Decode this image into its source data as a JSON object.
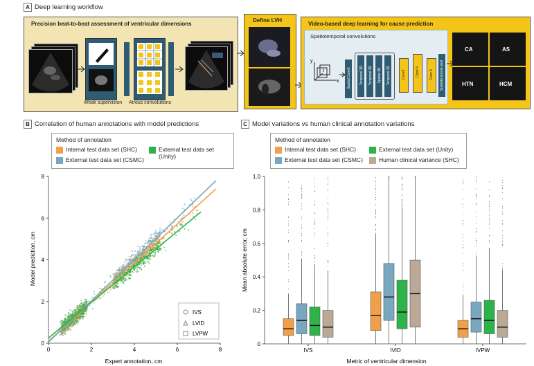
{
  "panel_a": {
    "letter": "A",
    "title": "Deep learning workflow",
    "section1_title": "Precision beat-to-beat assessment of ventricular dimensions",
    "weak_supervision": "Weak supervision",
    "atrous": "Atrous convolutions",
    "define_lvh": "Define LVH",
    "video_title": "Video-based deep learning for cause prediction",
    "spatiotemporal": "Spatiotemporal convolutions",
    "axes": {
      "x": "x",
      "y": "y",
      "t": "t"
    },
    "layers": [
      "Spatial Conv3",
      "Temporal 3D",
      "Temporal 3D",
      "Spatial 3D",
      "Temporal 3D",
      "Conv3",
      "Conv 4",
      "Conv 5",
      "Spatiotemporal pool"
    ],
    "causes": [
      "CA",
      "AS",
      "HTN",
      "HCM"
    ]
  },
  "panel_b": {
    "letter": "B",
    "title": "Correlation of human annotations with model predictions",
    "legend_title": "Method of annotation",
    "legend": [
      {
        "label": "Internal test data set (SHC)",
        "color": "#f0a04b"
      },
      {
        "label": "External test data set (Unity)",
        "color": "#2db34a"
      },
      {
        "label": "External test data set (CSMC)",
        "color": "#7aa7c0"
      }
    ],
    "shape_legend": [
      "IVS",
      "LVID",
      "LVPW"
    ],
    "xlabel": "Expert annotation, cm",
    "ylabel": "Model prediction, cm"
  },
  "panel_c": {
    "letter": "C",
    "title": "Model variations vs human clinical annotation variations",
    "legend_title": "Method of annotation",
    "legend": [
      {
        "label": "Internal test data set (SHC)",
        "color": "#f0a04b"
      },
      {
        "label": "External test data set (Unity)",
        "color": "#2db34a"
      },
      {
        "label": "External test data set (CSMC)",
        "color": "#7aa7c0"
      },
      {
        "label": "Human clinical variance (SHC)",
        "color": "#b9a995"
      }
    ]
  },
  "chart_data": [
    {
      "type": "scatter",
      "title": "Correlation of human annotations with model predictions",
      "xlabel": "Expert annotation, cm",
      "ylabel": "Model prediction, cm",
      "xlim": [
        0,
        8
      ],
      "ylim": [
        0,
        8
      ],
      "xticks": [
        "0",
        "2",
        "4",
        "6",
        "8"
      ],
      "yticks": [
        "0",
        "2",
        "4",
        "6",
        "8"
      ],
      "series": [
        {
          "name": "Internal test data set (SHC)",
          "color": "#f0a04b",
          "fit_line": [
            [
              0,
              0.1
            ],
            [
              7.8,
              7.4
            ]
          ]
        },
        {
          "name": "External test data set (CSMC)",
          "color": "#7aa7c0",
          "fit_line": [
            [
              0,
              0.05
            ],
            [
              7.8,
              7.8
            ]
          ]
        },
        {
          "name": "External test data set (Unity)",
          "color": "#2db34a",
          "fit_line": [
            [
              0,
              0.25
            ],
            [
              7.1,
              6.3
            ]
          ]
        }
      ]
    },
    {
      "type": "box",
      "title": "Model variations vs human clinical annotation variations",
      "xlabel": "Metric of ventricular dimension",
      "ylabel": "Mean absolute error, cm",
      "ylim": [
        0,
        1.0
      ],
      "yticks": [
        "0",
        "0.2",
        "0.4",
        "0.6",
        "0.8",
        "1.0"
      ],
      "categories": [
        "IVS",
        "IVID",
        "IVPW"
      ],
      "series": [
        {
          "name": "Internal test data set (SHC)",
          "color": "#f0a04b",
          "boxes": [
            {
              "q1": 0.05,
              "median": 0.09,
              "q3": 0.15
            },
            {
              "q1": 0.08,
              "median": 0.17,
              "q3": 0.31
            },
            {
              "q1": 0.04,
              "median": 0.09,
              "q3": 0.14
            }
          ]
        },
        {
          "name": "External test data set (CSMC)",
          "color": "#7aa7c0",
          "boxes": [
            {
              "q1": 0.06,
              "median": 0.14,
              "q3": 0.24
            },
            {
              "q1": 0.14,
              "median": 0.28,
              "q3": 0.48
            },
            {
              "q1": 0.07,
              "median": 0.15,
              "q3": 0.25
            }
          ]
        },
        {
          "name": "External test data set (Unity)",
          "color": "#2db34a",
          "boxes": [
            {
              "q1": 0.05,
              "median": 0.11,
              "q3": 0.22
            },
            {
              "q1": 0.09,
              "median": 0.19,
              "q3": 0.38
            },
            {
              "q1": 0.06,
              "median": 0.14,
              "q3": 0.26
            }
          ]
        },
        {
          "name": "Human clinical variance (SHC)",
          "color": "#b9a995",
          "boxes": [
            {
              "q1": 0.04,
              "median": 0.1,
              "q3": 0.2
            },
            {
              "q1": 0.1,
              "median": 0.3,
              "q3": 0.5
            },
            {
              "q1": 0.04,
              "median": 0.1,
              "q3": 0.2
            }
          ]
        }
      ]
    }
  ]
}
